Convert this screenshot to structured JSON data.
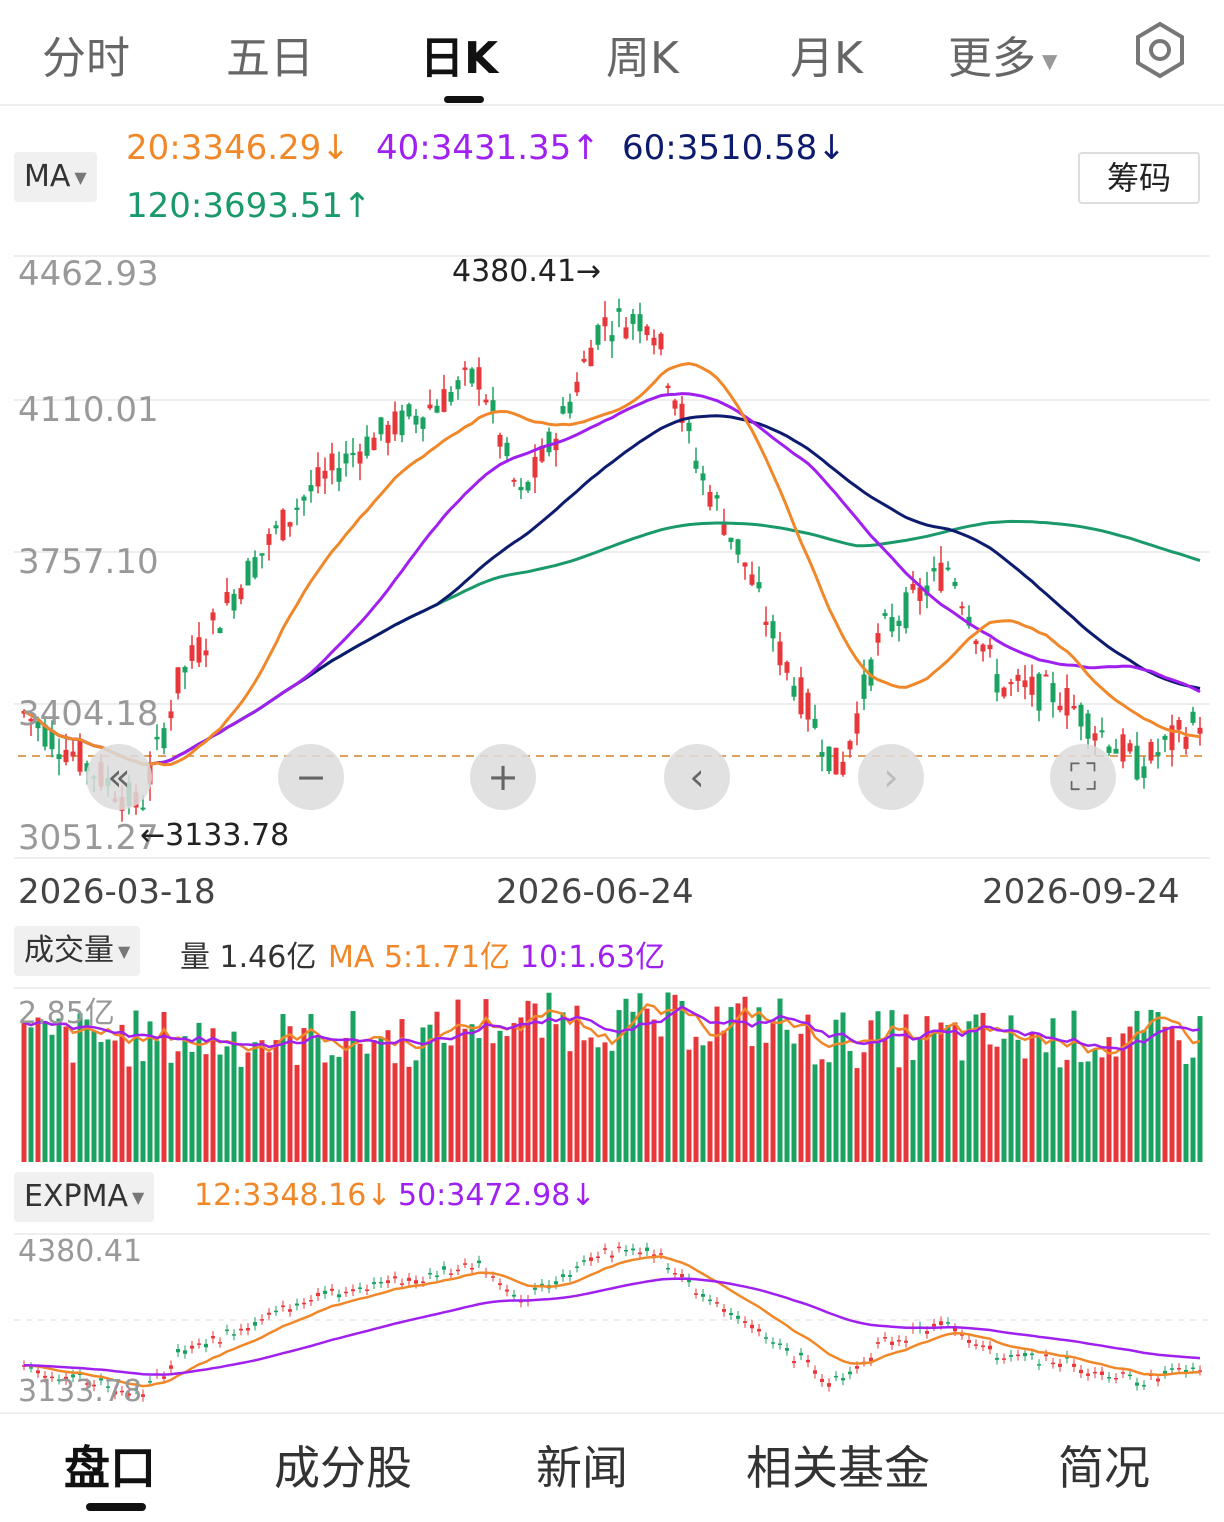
{
  "tabs": [
    {
      "label": "分时"
    },
    {
      "label": "五日"
    },
    {
      "label": "日K"
    },
    {
      "label": "周K"
    },
    {
      "label": "月K"
    },
    {
      "label": "更多"
    }
  ],
  "ma": {
    "selector": "MA",
    "ma20": "20:3346.29↓",
    "ma40": "40:3431.35↑",
    "ma60": "60:3510.58↓",
    "ma120": "120:3693.51↑",
    "chips_label": "筹码"
  },
  "price_axis": {
    "top": "4462.93",
    "l2": "4110.01",
    "l3": "3757.10",
    "l4": "3404.18",
    "bottom": "3051.27"
  },
  "annotations": {
    "high": "4380.41→",
    "low": "←3133.78"
  },
  "dates": {
    "d1": "2026-03-18",
    "d2": "2026-06-24",
    "d3": "2026-09-24"
  },
  "volume": {
    "selector": "成交量",
    "amount": "量 1.46亿",
    "ma5": "MA 5:1.71亿",
    "ma10": "10:1.63亿",
    "axis_top": "2.85亿"
  },
  "expma": {
    "selector": "EXPMA",
    "e12": "12:3348.16↓",
    "e50": "50:3472.98↓",
    "axis_top": "4380.41",
    "axis_bottom": "3133.78"
  },
  "controls": {
    "rewind": "«",
    "zoom_out": "−",
    "zoom_in": "+",
    "prev": "‹",
    "next": "›",
    "fullscreen": "⛶"
  },
  "bottom_tabs": [
    {
      "label": "盘口"
    },
    {
      "label": "成分股"
    },
    {
      "label": "新闻"
    },
    {
      "label": "相关基金"
    },
    {
      "label": "简况"
    }
  ],
  "colors": {
    "up": "#e8373a",
    "down": "#1aa260",
    "ma20": "#f0882a",
    "ma40": "#a020f0",
    "ma60": "#0d1b6e",
    "ma120": "#1a9a6a"
  },
  "chart_data": {
    "type": "candlestick",
    "price_range": [
      3051.27,
      4462.93
    ],
    "high_marker": 4380.41,
    "low_marker": 3133.78,
    "baseline_dashed": 3380
  }
}
